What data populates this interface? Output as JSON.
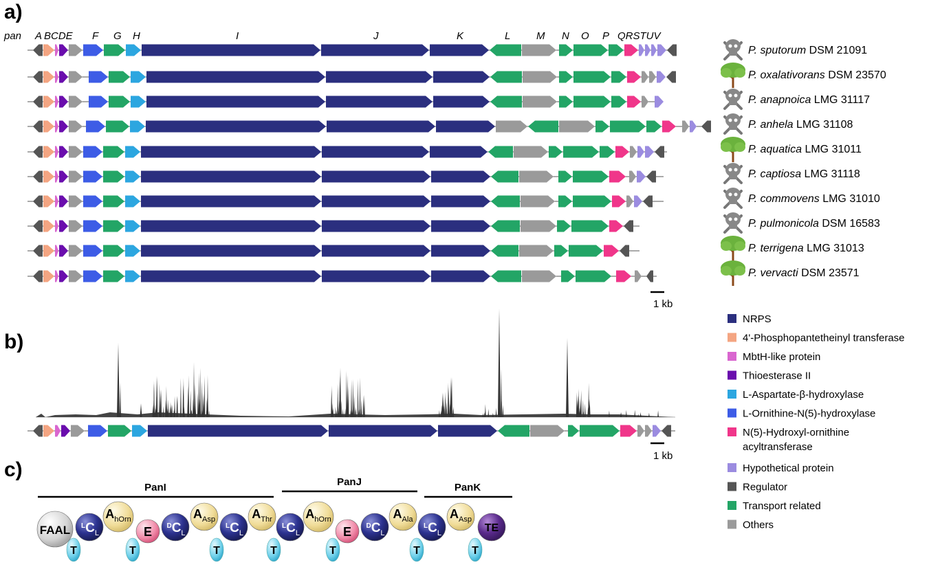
{
  "panels": {
    "a": "a)",
    "b": "b)",
    "c": "c)"
  },
  "cluster_label": "pan",
  "gene_letters": [
    "A",
    "B",
    "C",
    "D",
    "E",
    "F",
    "G",
    "H",
    "I",
    "J",
    "K",
    "L",
    "M",
    "N",
    "O",
    "P",
    "Q",
    "R",
    "S",
    "T",
    "U",
    "V"
  ],
  "gene_letter_strings": {
    "A": "A",
    "BCDE": "BCDE",
    "F": "F",
    "G": "G",
    "H": "H",
    "I": "I",
    "J": "J",
    "K": "K",
    "L": "L",
    "M": "M",
    "N": "N",
    "O": "O",
    "P": "P",
    "QRSTUV": "QRSTUV"
  },
  "scale_bar_label": "1 kb",
  "species": [
    {
      "genus": "P.",
      "epithet": "sputorum",
      "strain": "DSM 21091",
      "icon": "skull-icon"
    },
    {
      "genus": "P.",
      "epithet": "oxalativorans",
      "strain": "DSM 23570",
      "icon": "tree-icon"
    },
    {
      "genus": "P.",
      "epithet": "anapnoica",
      "strain": "LMG 31117",
      "icon": "skull-icon"
    },
    {
      "genus": "P.",
      "epithet": "anhela",
      "strain": "LMG 31108",
      "icon": "skull-icon"
    },
    {
      "genus": "P.",
      "epithet": "aquatica",
      "strain": "LMG 31011",
      "icon": "tree-icon"
    },
    {
      "genus": "P.",
      "epithet": "captiosa",
      "strain": "LMG 31118",
      "icon": "skull-icon"
    },
    {
      "genus": "P.",
      "epithet": "commovens",
      "strain": "LMG 31010",
      "icon": "skull-icon"
    },
    {
      "genus": "P.",
      "epithet": "pulmonicola",
      "strain": "DSM 16583",
      "icon": "skull-icon"
    },
    {
      "genus": "P.",
      "epithet": "terrigena",
      "strain": "LMG 31013",
      "icon": "tree-icon"
    },
    {
      "genus": "P.",
      "epithet": "vervacti",
      "strain": "DSM 23571",
      "icon": "tree-icon"
    }
  ],
  "legend": [
    {
      "label": "NRPS",
      "color": "#2b2f7f"
    },
    {
      "label": "4'-Phosphopantetheinyl transferase",
      "color": "#f4a582"
    },
    {
      "label": "MbtH-like protein",
      "color": "#d966cf"
    },
    {
      "label": "Thioesterase II",
      "color": "#6a0dad"
    },
    {
      "label": "L-Aspartate-β-hydroxylase",
      "color": "#2ca6e0"
    },
    {
      "label": "L-Ornithine-N(5)-hydroxylase",
      "color": "#3d5ce6"
    },
    {
      "label": "N(5)-Hydroxyl-ornithine",
      "label2": "acyltransferase",
      "color": "#f0368a"
    },
    {
      "label": "Hypothetical protein",
      "color": "#9b8ce0"
    },
    {
      "label": "Regulator",
      "color": "#555555"
    },
    {
      "label": "Transport related",
      "color": "#23a566"
    },
    {
      "label": "Others",
      "color": "#9a9a9a"
    }
  ],
  "protein_labels": {
    "panI": "PanI",
    "panJ": "PanJ",
    "panK": "PanK"
  },
  "domains": {
    "faal": "FAAL",
    "c": "C",
    "l_sup": "L",
    "d_sup": "D",
    "l_sub": "L",
    "a": "A",
    "horn": "hOrn",
    "asp": "Asp",
    "thr": "Thr",
    "ala": "Ala",
    "e": "E",
    "t": "T",
    "te": "TE"
  },
  "colors": {
    "nrps": "#2b2f7f",
    "ppt": "#f4a582",
    "mbth": "#d966cf",
    "te2": "#6a0dad",
    "asp": "#2ca6e0",
    "orn": "#3d5ce6",
    "acyl": "#f0368a",
    "hyp": "#9b8ce0",
    "reg": "#555555",
    "trans": "#23a566",
    "other": "#9a9a9a"
  }
}
